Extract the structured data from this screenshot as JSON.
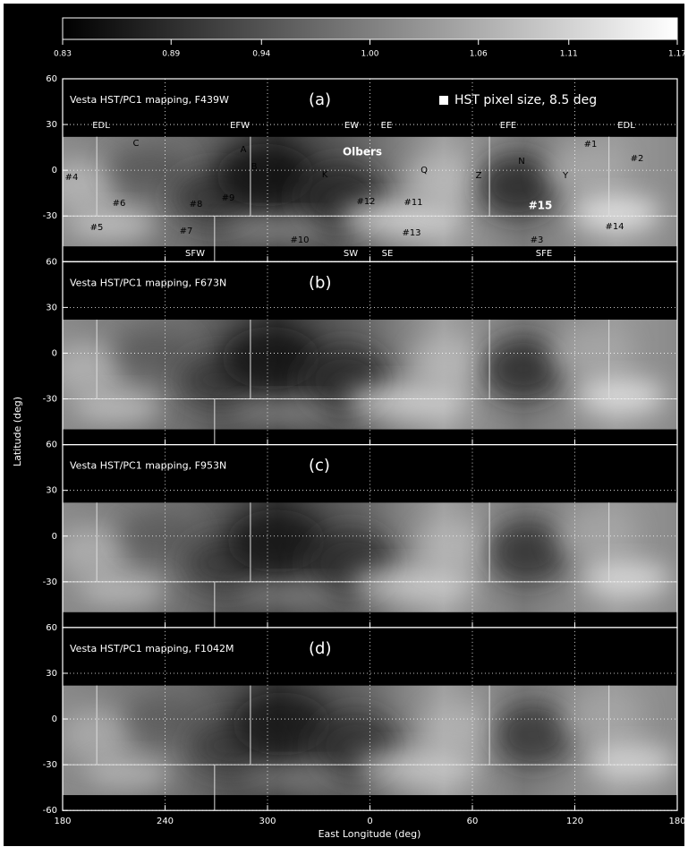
{
  "chart_data": {
    "type": "map",
    "colorbar": {
      "lim": [
        0.83,
        1.17
      ],
      "ticks": [
        0.83,
        0.89,
        0.94,
        {
          "value": 1,
          "label": "1.00"
        },
        1.06,
        1.11,
        1.17
      ]
    },
    "xlabel": "East Longitude (deg)",
    "ylabel": "Latitude (deg)",
    "xlim": [
      180,
      540
    ],
    "xticks": [
      180,
      240,
      300,
      {
        "value": 360,
        "label": "0"
      },
      {
        "value": 420,
        "label": "60"
      },
      {
        "value": 480,
        "label": "120"
      },
      {
        "value": 540,
        "label": "180"
      }
    ],
    "ylim": [
      -60,
      60
    ],
    "grid": true,
    "panels": [
      {
        "title": "Vesta HST/PC1 mapping, F439W",
        "label": "(a)",
        "yticks": [
          60,
          30,
          0,
          -30
        ]
      },
      {
        "title": "Vesta HST/PC1 mapping, F673N",
        "label": "(b)",
        "yticks": [
          60,
          30,
          0,
          -30
        ]
      },
      {
        "title": "Vesta HST/PC1 mapping, F953N",
        "label": "(c)",
        "yticks": [
          60,
          30,
          0,
          -30
        ]
      },
      {
        "title": "Vesta HST/PC1 mapping, F1042M",
        "label": "(d)",
        "yticks": [
          60,
          30,
          0,
          -30,
          -60
        ]
      }
    ],
    "pixel_size_note": "HST pixel size, 8.5 deg",
    "features": [
      "EDL",
      "EFW",
      "EW",
      "EE",
      "EFE",
      "EDL",
      "C",
      "A",
      "B",
      "Olbers",
      "K",
      "Q",
      "Z",
      "N",
      "Y",
      "#1",
      "#2",
      "#4",
      "#6",
      "#8",
      "#9",
      "#12",
      "#11",
      "#15",
      "#14",
      "#5",
      "#7",
      "#10",
      "#13",
      "#3",
      "SFW",
      "SW",
      "SE",
      "SFE"
    ]
  }
}
